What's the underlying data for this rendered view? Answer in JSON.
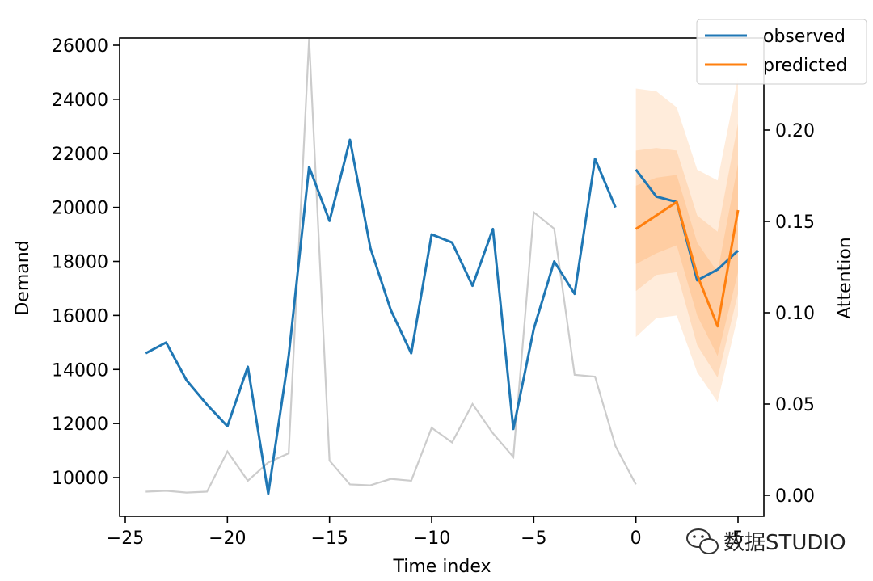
{
  "chart_data": {
    "type": "line",
    "xlabel": "Time index",
    "ylabel": "Demand",
    "y2label": "Attention",
    "xlim": [
      -25,
      5
    ],
    "ylim": [
      9000,
      26300
    ],
    "y2lim": [
      -0.0125,
      0.2585
    ],
    "xticks": [
      -25,
      -20,
      -15,
      -10,
      -5,
      0,
      5
    ],
    "xtick_labels": [
      "−25",
      "−20",
      "−15",
      "−10",
      "−5",
      "0",
      "5"
    ],
    "yticks": [
      10000,
      12000,
      14000,
      16000,
      18000,
      20000,
      22000,
      24000,
      26000
    ],
    "ytick_labels": [
      "10000",
      "12000",
      "14000",
      "16000",
      "18000",
      "20000",
      "22000",
      "24000",
      "26000"
    ],
    "y2ticks": [
      0.0,
      0.05,
      0.1,
      0.15,
      0.2
    ],
    "y2tick_labels": [
      "0.00",
      "0.05",
      "0.10",
      "0.15",
      "0.20"
    ],
    "grid": false,
    "legend_position": "top-right",
    "series": [
      {
        "name": "observed",
        "color": "#1f77b4",
        "x": [
          -24,
          -23,
          -22,
          -21,
          -20,
          -19,
          -18,
          -17,
          -16,
          -15,
          -14,
          -13,
          -12,
          -11,
          -10,
          -9,
          -8,
          -7,
          -6,
          -5,
          -4,
          -3,
          -2,
          -1
        ],
        "y": [
          14600,
          15000,
          13600,
          12700,
          11900,
          14100,
          9400,
          14500,
          21500,
          19500,
          22500,
          18500,
          16200,
          14600,
          19000,
          18700,
          17100,
          19200,
          11800,
          15500,
          18000,
          16800,
          21800,
          20000
        ]
      },
      {
        "name": "observed",
        "color": "#1f77b4",
        "x": [
          0,
          1,
          2,
          3,
          4,
          5
        ],
        "y": [
          21400,
          20400,
          20200,
          17300,
          17700,
          18400
        ]
      },
      {
        "name": "predicted",
        "color": "#ff7f0e",
        "x": [
          0,
          1,
          2,
          3,
          4,
          5
        ],
        "y": [
          19200,
          19700,
          20200,
          17500,
          15600,
          19900
        ]
      }
    ],
    "attention": {
      "color": "#cccccc",
      "x": [
        -24,
        -23,
        -22,
        -21,
        -20,
        -19,
        -18,
        -17,
        -16,
        -15,
        -14,
        -13,
        -12,
        -11,
        -10,
        -9,
        -8,
        -7,
        -6,
        -5,
        -4,
        -3,
        -2,
        -1,
        0
      ],
      "y": [
        0.002,
        0.0025,
        0.0015,
        0.002,
        0.024,
        0.008,
        0.018,
        0.023,
        0.25,
        0.019,
        0.006,
        0.0055,
        0.009,
        0.008,
        0.037,
        0.029,
        0.05,
        0.034,
        0.021,
        0.155,
        0.146,
        0.066,
        0.065,
        0.027,
        0.006
      ]
    },
    "quantile_bands": {
      "color": "#ff7f0e",
      "x": [
        0,
        1,
        2,
        3,
        4,
        5
      ],
      "bands": [
        {
          "opacity": 0.15,
          "lower": [
            15200,
            15900,
            16000,
            13900,
            12800,
            16000
          ],
          "upper": [
            24400,
            24300,
            23700,
            21400,
            21000,
            24800
          ]
        },
        {
          "opacity": 0.15,
          "lower": [
            16900,
            17500,
            17600,
            14900,
            13700,
            16800
          ],
          "upper": [
            22100,
            22200,
            22100,
            19700,
            19100,
            23100
          ]
        },
        {
          "opacity": 0.15,
          "lower": [
            17900,
            18300,
            18600,
            16000,
            14500,
            17600
          ],
          "upper": [
            20800,
            21100,
            21200,
            18700,
            17600,
            21600
          ]
        }
      ]
    }
  },
  "watermark": {
    "text": "数据STUDIO",
    "icon": "wechat-icon"
  }
}
